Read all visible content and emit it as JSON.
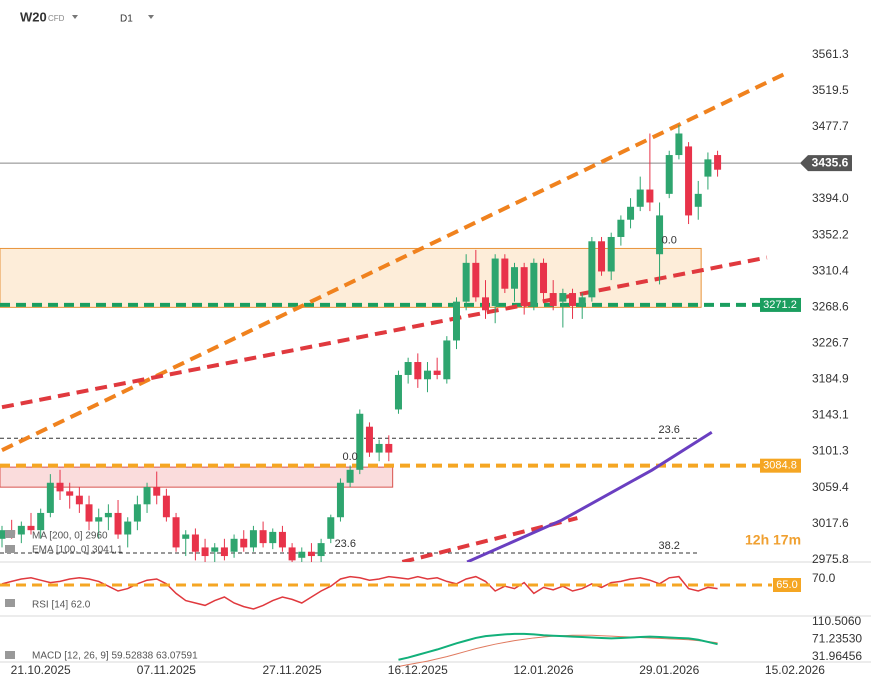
{
  "chart_data": {
    "type": "candlestick",
    "symbol": "W20",
    "symbol_type": "CFD",
    "timeframe": "D1",
    "timer": "12h 17m",
    "categories": [
      null,
      null,
      null,
      null,
      "21.10.2025",
      null,
      null,
      null,
      null,
      null,
      null,
      null,
      null,
      null,
      null,
      null,
      null,
      "07.11.2025",
      null,
      null,
      null,
      null,
      null,
      null,
      null,
      null,
      null,
      null,
      null,
      null,
      "27.11.2025",
      null,
      null,
      null,
      null,
      null,
      null,
      null,
      null,
      null,
      null,
      null,
      null,
      "16.12.2025",
      null,
      null,
      null,
      null,
      null,
      null,
      null,
      null,
      null,
      null,
      null,
      null,
      "12.01.2026",
      null,
      null,
      null,
      null,
      null,
      null,
      null,
      null,
      null,
      null,
      null,
      null,
      "29.01.2026",
      null,
      null,
      null,
      null,
      null,
      null,
      null,
      null,
      null,
      null,
      null,
      null,
      "15.02.2026"
    ],
    "open": [
      3000,
      3010,
      3005,
      3015,
      3010,
      3030,
      3065,
      3055,
      3050,
      3040,
      3020,
      3025,
      3030,
      3005,
      3020,
      3040,
      3060,
      3050,
      3025,
      3000,
      3005,
      2990,
      2985,
      2990,
      2985,
      3000,
      2990,
      3010,
      2995,
      3008,
      2990,
      2978,
      2985,
      2980,
      3000,
      3025,
      3065,
      3080,
      3130,
      3100,
      3110,
      3150,
      3190,
      3205,
      3185,
      3195,
      3185,
      3230,
      3275,
      3320,
      3280,
      3270,
      3325,
      3290,
      3315,
      3270,
      3320,
      3285,
      3275,
      3285,
      3270,
      3280,
      3345,
      3310,
      3350,
      3370,
      3385,
      3405,
      3330,
      3400,
      3445,
      3455,
      3385,
      3420,
      3445,
      null,
      null,
      null,
      null,
      null,
      null,
      null,
      null
    ],
    "high": [
      3015,
      3022,
      3020,
      3030,
      3035,
      3075,
      3080,
      3065,
      3060,
      3050,
      3035,
      3040,
      3045,
      3025,
      3050,
      3065,
      3078,
      3058,
      3030,
      3010,
      3012,
      3000,
      2995,
      3000,
      3005,
      3010,
      3015,
      3020,
      3012,
      3015,
      2995,
      2990,
      2995,
      3000,
      3028,
      3070,
      3085,
      3150,
      3135,
      3115,
      3120,
      3195,
      3210,
      3215,
      3205,
      3210,
      3235,
      3280,
      3330,
      3335,
      3300,
      3330,
      3330,
      3320,
      3320,
      3325,
      3325,
      3300,
      3290,
      3290,
      3285,
      3350,
      3350,
      3355,
      3375,
      3395,
      3420,
      3470,
      3390,
      3450,
      3480,
      3460,
      3415,
      3448,
      3450,
      null,
      null,
      null,
      null,
      null,
      null,
      null,
      null
    ],
    "low": [
      2990,
      3000,
      2995,
      3005,
      3000,
      3025,
      3045,
      3035,
      3030,
      3010,
      3000,
      3010,
      3000,
      2990,
      3010,
      3030,
      3040,
      3020,
      2985,
      2980,
      2975,
      2970,
      2970,
      2975,
      2978,
      2985,
      2985,
      2990,
      2988,
      2985,
      2970,
      2965,
      2970,
      2970,
      2995,
      3020,
      3060,
      3075,
      3095,
      3090,
      3090,
      3145,
      3180,
      3175,
      3170,
      3185,
      3180,
      3220,
      3265,
      3275,
      3255,
      3250,
      3285,
      3275,
      3260,
      3265,
      3275,
      3265,
      3245,
      3255,
      3255,
      3275,
      3305,
      3300,
      3340,
      3360,
      3380,
      3380,
      3295,
      3395,
      3440,
      3365,
      3370,
      3405,
      3420,
      null,
      null,
      null,
      null,
      null,
      null,
      null,
      null
    ],
    "close": [
      3010,
      3005,
      3015,
      3010,
      3030,
      3065,
      3055,
      3050,
      3040,
      3020,
      3025,
      3030,
      3005,
      3020,
      3040,
      3060,
      3050,
      3025,
      2990,
      3005,
      2985,
      2980,
      2990,
      2980,
      3000,
      2990,
      3010,
      2995,
      3008,
      2990,
      2975,
      2985,
      2980,
      2995,
      3025,
      3065,
      3080,
      3145,
      3100,
      3110,
      3100,
      3190,
      3205,
      3185,
      3195,
      3190,
      3230,
      3275,
      3320,
      3280,
      3265,
      3325,
      3290,
      3315,
      3270,
      3320,
      3285,
      3270,
      3285,
      3270,
      3280,
      3345,
      3310,
      3350,
      3370,
      3385,
      3405,
      3390,
      3375,
      3445,
      3470,
      3375,
      3400,
      3440,
      3428,
      null,
      null,
      null,
      null,
      null,
      null,
      null,
      null
    ],
    "color_up": "#2ea56f",
    "color_down": "#e8334a",
    "ylim": [
      2973.1,
      3624.8
    ],
    "yticks": [
      3561.3,
      3519.5,
      3477.7,
      {
        "value": 3394.0,
        "label": "3394.0"
      },
      3352.2,
      3310.4,
      3268.6,
      3226.7,
      3184.9,
      3143.1,
      3101.3,
      3059.4,
      3017.6,
      2975.8
    ],
    "last_price": 3435.6,
    "levels": [
      {
        "value": 3271.2,
        "color": "#1a9e5f"
      },
      {
        "value": 3084.8,
        "color": "#f5a623"
      }
    ],
    "zones": [
      {
        "top": 3336.7,
        "bottom": 3268.4,
        "end": 72.3,
        "fill": "#fde9cf",
        "stroke": "#e8943a"
      },
      {
        "top": 3083.1,
        "bottom": 3059.9,
        "end": 40.4,
        "fill": "#f9d3d3",
        "stroke": "#d9534f"
      }
    ],
    "fib_lines": [
      {
        "price": 3116.6,
        "end": 72
      },
      {
        "price": 2983.5,
        "end": 72
      }
    ],
    "fib_labels": [
      {
        "text": "0.0",
        "index": 69,
        "price": 3345.9
      },
      {
        "text": "23.6",
        "index": 69,
        "price": 3126.0
      },
      {
        "text": "0.0",
        "index": 36,
        "price": 3094.6
      },
      {
        "text": "23.6",
        "index": 35.5,
        "price": 2993.9
      },
      {
        "text": "38.2",
        "index": 69,
        "price": 2991.6
      }
    ],
    "trend_lines": [
      {
        "points": [
          [
            0,
            3102.8
          ],
          [
            81.2,
            3540.5
          ]
        ],
        "color": "#f0821e",
        "dashed": true
      },
      {
        "points": [
          [
            0,
            3152.6
          ],
          [
            79.1,
            3326.2
          ]
        ],
        "color": "#e0393e",
        "dashed": true
      },
      {
        "points": [
          [
            41.4,
            2973.1
          ],
          [
            59.5,
            3024.0
          ]
        ],
        "color": "#e0393e",
        "dashed": true
      },
      {
        "points": [
          [
            48.1,
            2973.1
          ],
          [
            57.9,
            3021.7
          ],
          [
            67.2,
            3079.6
          ],
          [
            73.4,
            3123.6
          ]
        ],
        "color": "#6a3fc1",
        "dashed": false
      }
    ],
    "indicator_labels": [
      "MA [200, 0] 2960",
      "EMA [100, 0] 3041.1"
    ],
    "rsi": {
      "label": "RSI [14] 62.0",
      "color": "#e0393e",
      "values": [
        66,
        68,
        70,
        71,
        69,
        67,
        68,
        70,
        71,
        70,
        68,
        64,
        60,
        62,
        66,
        69,
        70,
        66,
        58,
        52,
        50,
        48,
        52,
        55,
        50,
        47,
        45,
        48,
        52,
        55,
        53,
        50,
        55,
        60,
        64,
        70,
        72,
        71,
        69,
        70,
        72,
        71,
        70,
        72,
        70,
        71,
        68,
        66,
        70,
        72,
        68,
        60,
        64,
        62,
        67,
        58,
        63,
        61,
        64,
        60,
        62,
        66,
        63,
        67,
        68,
        70,
        71,
        69,
        66,
        71,
        72,
        62,
        60,
        63,
        62,
        null,
        null,
        null,
        null,
        null,
        null,
        null,
        null
      ],
      "ylim": [
        40,
        82.5
      ],
      "yticks": [
        {
          "value": 70,
          "label": "70.0"
        }
      ],
      "level": {
        "value": 65,
        "label": "65.0"
      }
    },
    "macd": {
      "label": "MACD [12, 26, 9] 59.52838 63.07591",
      "macd_color": "#12b07a",
      "signal_color": "#e07a5f",
      "macd": [
        null,
        null,
        null,
        null,
        null,
        null,
        null,
        null,
        null,
        null,
        null,
        null,
        null,
        null,
        null,
        null,
        null,
        null,
        null,
        null,
        null,
        null,
        null,
        null,
        null,
        null,
        null,
        null,
        null,
        null,
        null,
        null,
        null,
        null,
        null,
        null,
        null,
        null,
        null,
        null,
        null,
        25,
        30,
        36,
        42,
        48,
        55,
        62,
        68,
        74,
        78,
        80,
        82,
        83,
        83,
        82,
        80,
        79,
        78,
        77,
        76,
        75,
        74,
        73,
        74,
        75,
        76,
        77,
        76,
        75,
        74,
        73,
        70,
        65,
        60,
        null,
        null,
        null,
        null,
        null,
        null,
        null,
        null
      ],
      "signal": [
        null,
        null,
        null,
        null,
        null,
        null,
        null,
        null,
        null,
        null,
        null,
        null,
        null,
        null,
        null,
        null,
        null,
        null,
        null,
        null,
        null,
        null,
        null,
        null,
        null,
        null,
        null,
        null,
        null,
        null,
        null,
        null,
        null,
        null,
        null,
        null,
        null,
        null,
        null,
        null,
        null,
        10,
        14,
        18,
        22,
        27,
        32,
        38,
        44,
        50,
        55,
        60,
        64,
        68,
        71,
        74,
        76,
        78,
        79,
        80,
        80,
        80,
        79,
        78,
        77,
        76,
        75,
        74,
        73,
        72,
        71,
        70,
        68,
        66,
        63,
        null,
        null,
        null,
        null,
        null,
        null,
        null,
        null
      ],
      "ylim": [
        20,
        121
      ],
      "yticks": [
        {
          "value": 110.506,
          "label": "110.5060"
        },
        {
          "value": 71.2353,
          "label": "71.23530"
        },
        31.96456
      ]
    }
  }
}
